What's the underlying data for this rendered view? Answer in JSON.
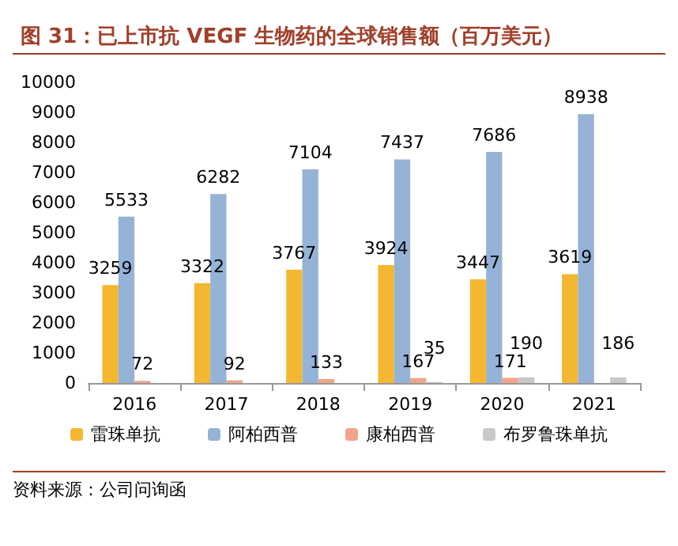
{
  "chart_data": {
    "type": "bar",
    "title": "图 31：已上市抗 VEGF 生物药的全球销售额（百万美元）",
    "categories": [
      "2016",
      "2017",
      "2018",
      "2019",
      "2020",
      "2021"
    ],
    "series": [
      {
        "name": "雷珠单抗",
        "color": "#f4b731",
        "values": [
          3259,
          3322,
          3767,
          3924,
          3447,
          3619
        ]
      },
      {
        "name": "阿柏西普",
        "color": "#95b3d7",
        "values": [
          5533,
          6282,
          7104,
          7437,
          7686,
          8938
        ]
      },
      {
        "name": "康柏西普",
        "color": "#f0a58a",
        "values": [
          72,
          92,
          133,
          167,
          171,
          null
        ]
      },
      {
        "name": "布罗鲁珠单抗",
        "color": "#c8c8c8",
        "values": [
          null,
          null,
          null,
          35,
          190,
          186
        ]
      }
    ],
    "ylim": [
      0,
      10000
    ],
    "yticks": [
      0,
      1000,
      2000,
      3000,
      4000,
      5000,
      6000,
      7000,
      8000,
      9000,
      10000
    ],
    "grid": false,
    "legend": "bottom",
    "data_labels": true,
    "annotations": [
      "资料来源：公司问询函"
    ]
  }
}
